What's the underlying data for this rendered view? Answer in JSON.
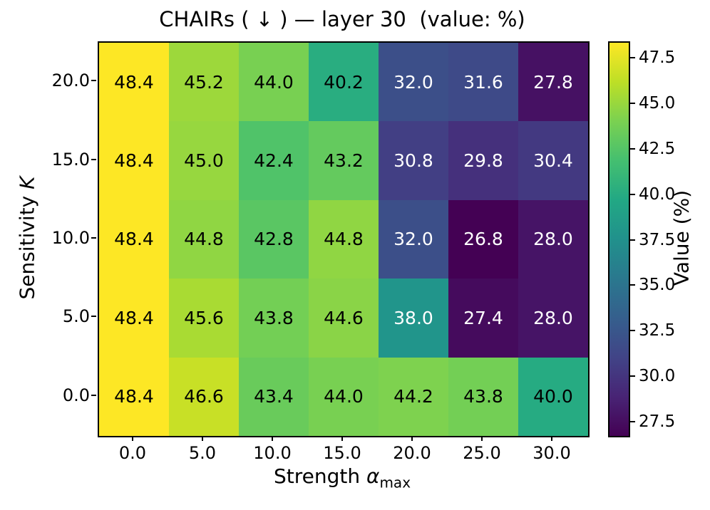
{
  "chart_data": {
    "type": "heatmap",
    "title": "CHAIRs ( ↓ ) — layer 30  (value: %)",
    "xlabel_text": "Strength ",
    "xlabel_symbol": "α",
    "xlabel_subscript": "max",
    "ylabel_text": "Sensitivity ",
    "ylabel_symbol": "K",
    "colorbar_label": "Value (%)",
    "x_ticks": [
      "0.0",
      "5.0",
      "10.0",
      "15.0",
      "20.0",
      "25.0",
      "30.0"
    ],
    "y_ticks": [
      "20.0",
      "15.0",
      "10.0",
      "5.0",
      "0.0"
    ],
    "colorbar_ticks": [
      47.5,
      45.0,
      42.5,
      40.0,
      37.5,
      35.0,
      32.5,
      30.0,
      27.5
    ],
    "vmin": 26.8,
    "vmax": 48.4,
    "colormap": "viridis",
    "colormap_stops": [
      [
        0.0,
        "#440154"
      ],
      [
        0.1,
        "#482475"
      ],
      [
        0.2,
        "#414487"
      ],
      [
        0.3,
        "#355f8d"
      ],
      [
        0.4,
        "#2a788e"
      ],
      [
        0.5,
        "#21918c"
      ],
      [
        0.6,
        "#22a884"
      ],
      [
        0.7,
        "#44bf70"
      ],
      [
        0.8,
        "#7ad151"
      ],
      [
        0.9,
        "#bddf26"
      ],
      [
        1.0,
        "#fde725"
      ]
    ],
    "cell_text_colors": {
      "light": "#ffffff",
      "dark": "#000000"
    },
    "values": [
      [
        48.4,
        45.2,
        44.0,
        40.2,
        32.0,
        31.6,
        27.8
      ],
      [
        48.4,
        45.0,
        42.4,
        43.2,
        30.8,
        29.8,
        30.4
      ],
      [
        48.4,
        44.8,
        42.8,
        44.8,
        32.0,
        26.8,
        28.0
      ],
      [
        48.4,
        45.6,
        43.8,
        44.6,
        38.0,
        27.4,
        28.0
      ],
      [
        48.4,
        46.6,
        43.4,
        44.0,
        44.2,
        43.8,
        40.0
      ]
    ]
  }
}
